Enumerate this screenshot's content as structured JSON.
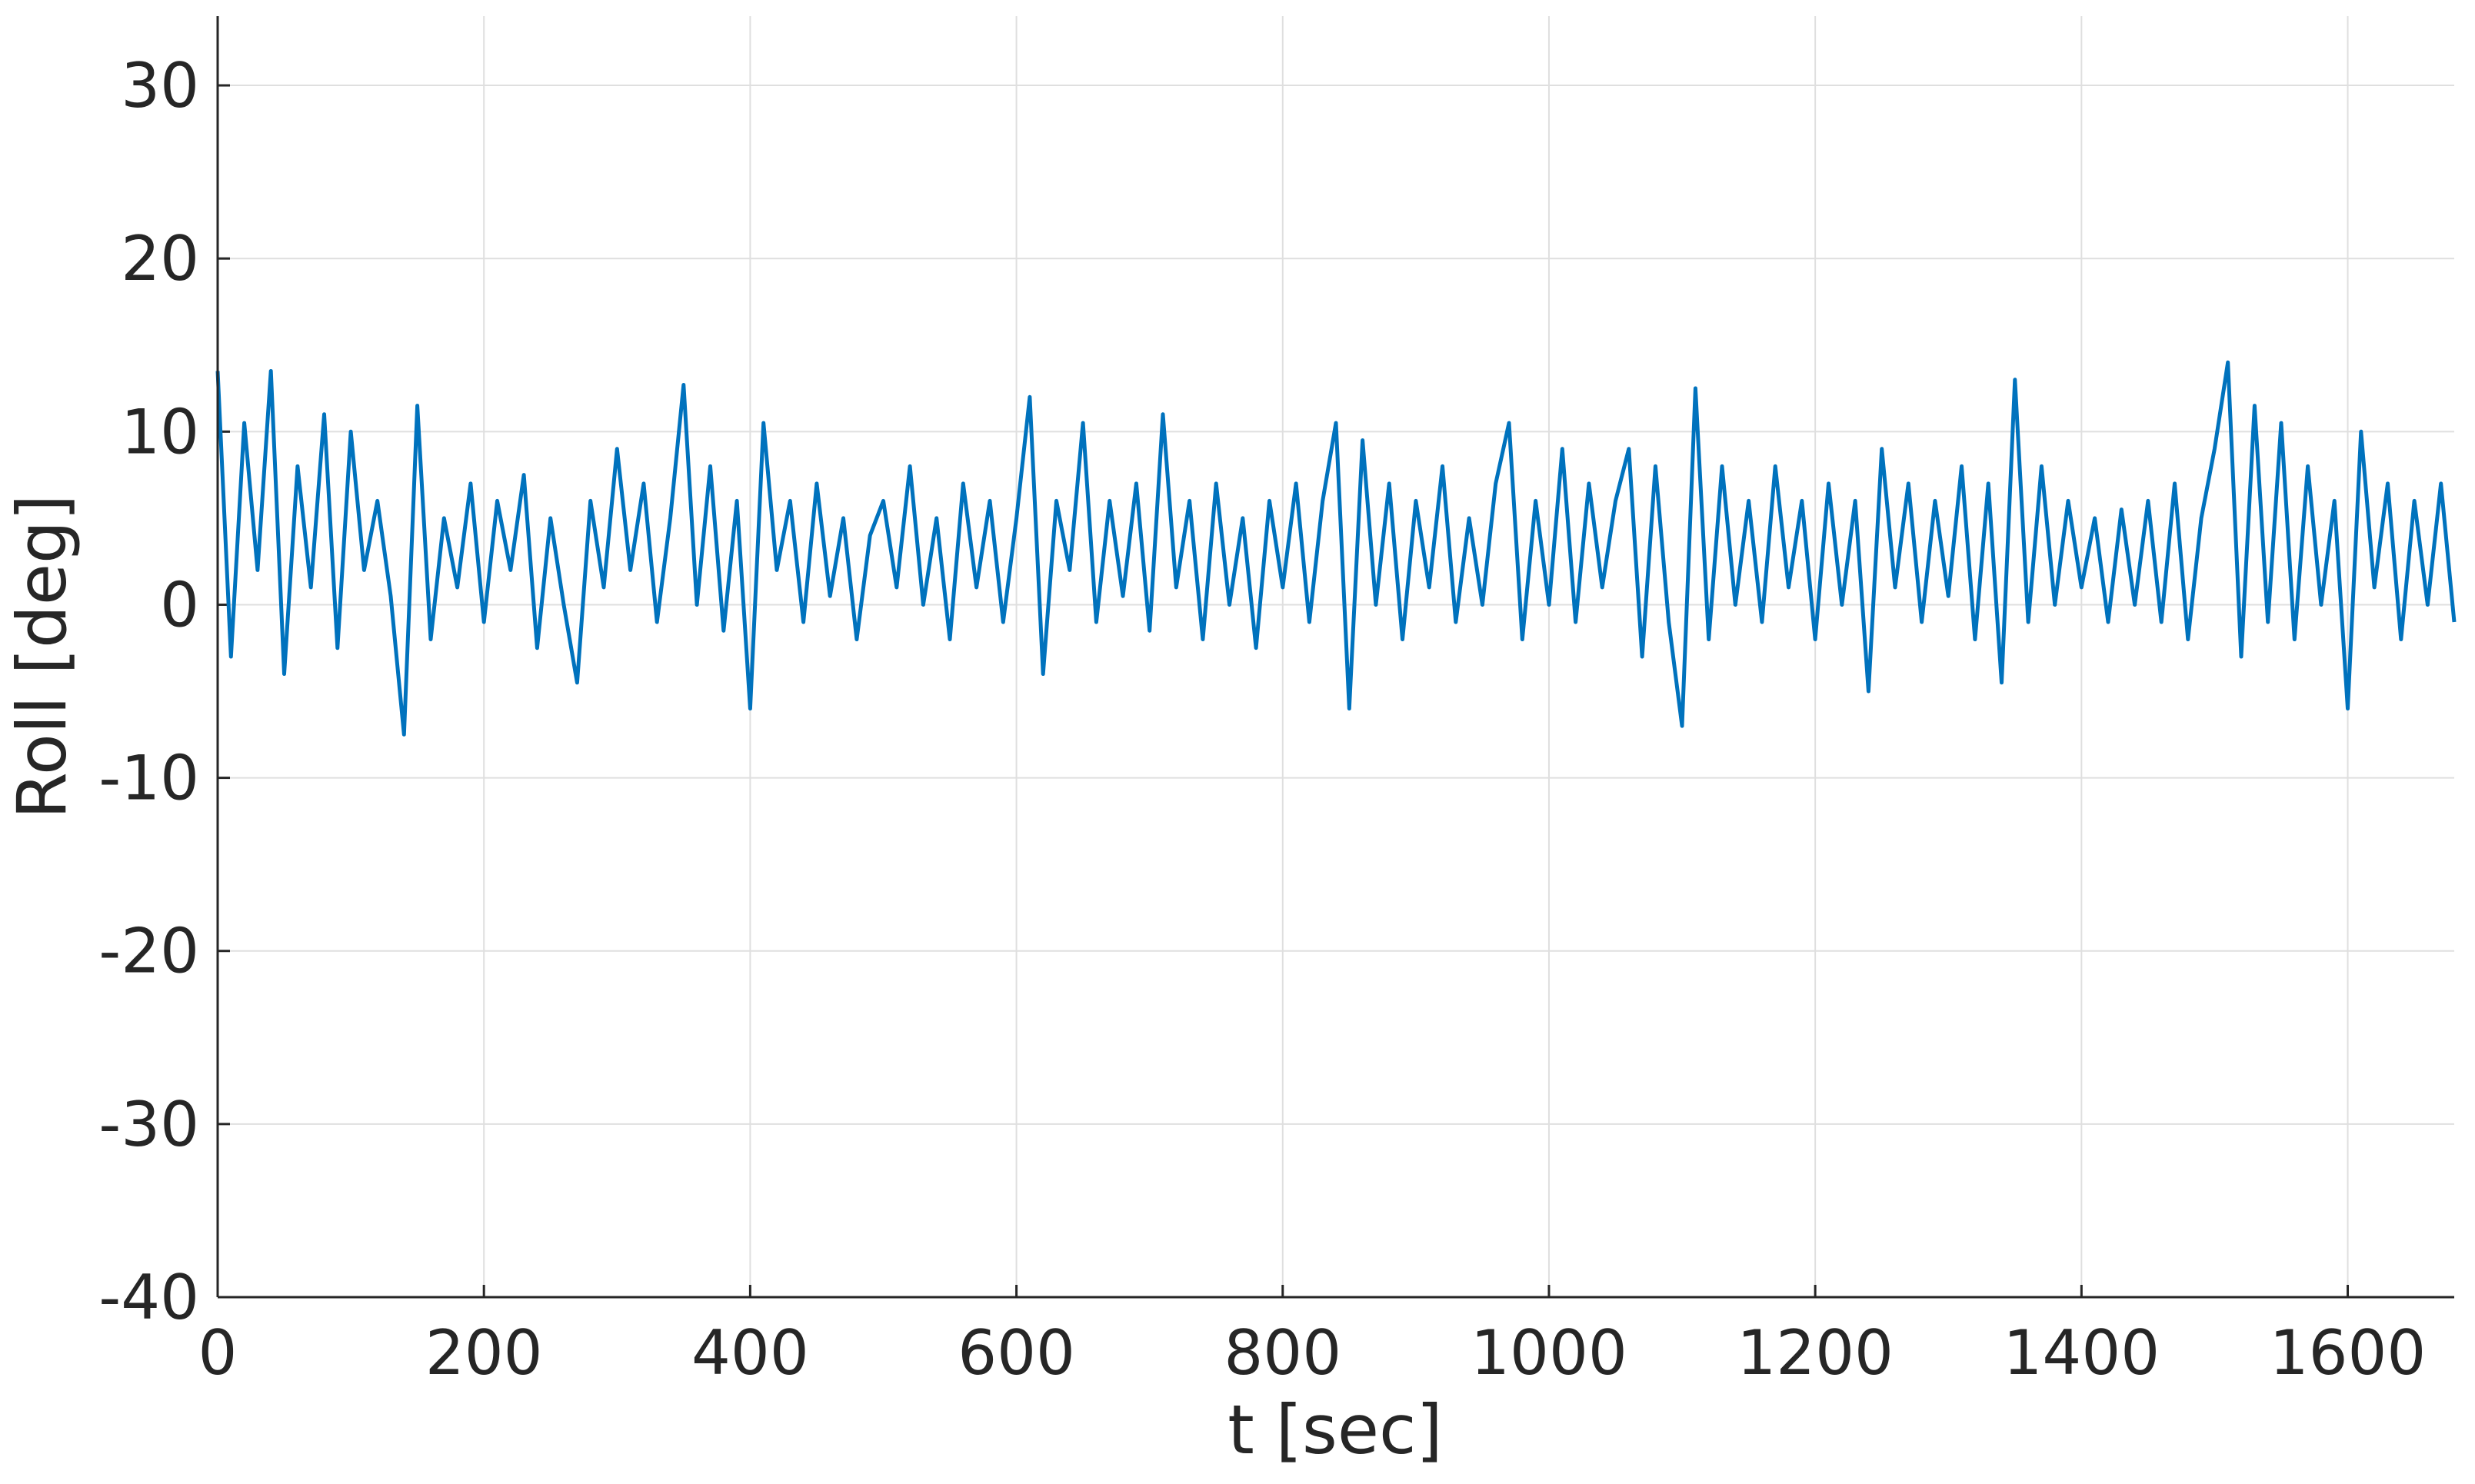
{
  "chart_data": {
    "type": "line",
    "xlabel": "t [sec]",
    "ylabel": "Roll [deg]",
    "color": "#0072bd",
    "grid": true,
    "xlim": [
      0,
      1680
    ],
    "ylim": [
      -40,
      34
    ],
    "xticks": [
      0,
      200,
      400,
      600,
      800,
      1000,
      1200,
      1400,
      1600
    ],
    "yticks": [
      -40,
      -30,
      -20,
      -10,
      0,
      10,
      20,
      30
    ],
    "x": [
      0,
      10,
      20,
      30,
      40,
      50,
      60,
      70,
      80,
      90,
      100,
      110,
      120,
      130,
      140,
      150,
      160,
      170,
      180,
      190,
      200,
      210,
      220,
      230,
      240,
      250,
      260,
      270,
      280,
      290,
      300,
      310,
      320,
      330,
      340,
      350,
      360,
      370,
      380,
      390,
      400,
      410,
      420,
      430,
      440,
      450,
      460,
      470,
      480,
      490,
      500,
      510,
      520,
      530,
      540,
      550,
      560,
      570,
      580,
      590,
      600,
      610,
      620,
      630,
      640,
      650,
      660,
      670,
      680,
      690,
      700,
      710,
      720,
      730,
      740,
      750,
      760,
      770,
      780,
      790,
      800,
      810,
      820,
      830,
      840,
      850,
      860,
      870,
      880,
      890,
      900,
      910,
      920,
      930,
      940,
      950,
      960,
      970,
      980,
      990,
      1000,
      1010,
      1020,
      1030,
      1040,
      1050,
      1060,
      1070,
      1080,
      1090,
      1100,
      1110,
      1120,
      1130,
      1140,
      1150,
      1160,
      1170,
      1180,
      1190,
      1200,
      1210,
      1220,
      1230,
      1240,
      1250,
      1260,
      1270,
      1280,
      1290,
      1300,
      1310,
      1320,
      1330,
      1340,
      1350,
      1360,
      1370,
      1380,
      1390,
      1400,
      1410,
      1420,
      1430,
      1440,
      1450,
      1460,
      1470,
      1480,
      1490,
      1500,
      1510,
      1520,
      1530,
      1540,
      1550,
      1560,
      1570,
      1580,
      1590,
      1600,
      1610,
      1620,
      1630,
      1640,
      1650,
      1660,
      1670,
      1680
    ],
    "values": [
      13.5,
      -3,
      10.5,
      2,
      13.5,
      -4,
      8,
      1,
      11,
      -2.5,
      10,
      2,
      6,
      0.5,
      -7.5,
      11.5,
      -2,
      5,
      1,
      7,
      -1,
      6,
      2,
      7.5,
      -2.5,
      5,
      0,
      -4.5,
      6,
      1,
      9,
      2,
      7,
      -1,
      5,
      12.7,
      0,
      8,
      -1.5,
      6,
      -6,
      10.5,
      2,
      6,
      -1,
      7,
      0.5,
      5,
      -2,
      4,
      6,
      1,
      8,
      0,
      5,
      -2,
      7,
      1,
      6,
      -1,
      5,
      12,
      -4,
      6,
      2,
      10.5,
      -1,
      6,
      0.5,
      7,
      -1.5,
      11,
      1,
      6,
      -2,
      7,
      0,
      5,
      -2.5,
      6,
      1,
      7,
      -1,
      6,
      10.5,
      -6,
      9.5,
      0,
      7,
      -2,
      6,
      1,
      8,
      -1,
      5,
      0,
      7,
      10.5,
      -2,
      6,
      0,
      9,
      -1,
      7,
      1,
      6,
      9,
      -3,
      8,
      -1,
      -7,
      12.5,
      -2,
      8,
      0,
      6,
      -1,
      8,
      1,
      6,
      -2,
      7,
      0,
      6,
      -5,
      9,
      1,
      7,
      -1,
      6,
      0.5,
      8,
      -2,
      7,
      -4.5,
      13,
      -1,
      8,
      0,
      6,
      1,
      5,
      -1,
      5.5,
      0,
      6,
      -1,
      7,
      -2,
      5,
      9,
      14,
      -3,
      11.5,
      -1,
      10.5,
      -2,
      8,
      0,
      6,
      -6,
      10,
      1,
      7,
      -2,
      6,
      0,
      7,
      -1
    ]
  }
}
